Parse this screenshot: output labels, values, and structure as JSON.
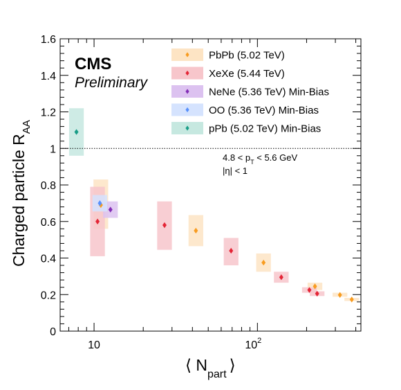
{
  "chart_data": {
    "type": "scatter",
    "experiment_label": "CMS",
    "status_label": "Preliminary",
    "xlabel": "⟨ N",
    "xlabel_sub": "part",
    "xlabel_close": "⟩",
    "ylabel": "Charged particle R",
    "ylabel_sub": "AA",
    "x_scale": "log",
    "xlim": [
      6.2,
      430
    ],
    "ylim": [
      0,
      1.6
    ],
    "x_tick_labels": [
      {
        "value": 10,
        "base": "10",
        "exp": ""
      },
      {
        "value": 100,
        "base": "10",
        "exp": "2"
      }
    ],
    "y_ticks": [
      0,
      0.2,
      0.4,
      0.6,
      0.8,
      1,
      1.2,
      1.4,
      1.6
    ],
    "y_tick_labels": [
      "0",
      "0.2",
      "0.4",
      "0.6",
      "0.8",
      "1",
      "1.2",
      "1.4",
      "1.6"
    ],
    "reference_line": 1.0,
    "annotation_line1": {
      "main": "4.8 < p",
      "sub": "T",
      "rest": " < 5.6 GeV"
    },
    "annotation_line2": {
      "main": "|η| < 1"
    },
    "legend_position": "top-right",
    "series": [
      {
        "name": "PbPb (5.02 TeV)",
        "marker_color": "#f89c20",
        "box_color": "#fde4c4",
        "points": [
          {
            "x": 11.0,
            "y": 0.69,
            "sys_lo": 0.56,
            "sys_hi": 0.83
          },
          {
            "x": 42.0,
            "y": 0.55,
            "sys_lo": 0.465,
            "sys_hi": 0.635
          },
          {
            "x": 109,
            "y": 0.375,
            "sys_lo": 0.325,
            "sys_hi": 0.425
          },
          {
            "x": 225,
            "y": 0.245,
            "sys_lo": 0.225,
            "sys_hi": 0.265
          },
          {
            "x": 320,
            "y": 0.198,
            "sys_lo": 0.188,
            "sys_hi": 0.21
          },
          {
            "x": 378,
            "y": 0.173,
            "sys_lo": 0.165,
            "sys_hi": 0.182
          }
        ]
      },
      {
        "name": "XeXe (5.44 TeV)",
        "marker_color": "#e42536",
        "box_color": "#f7c6cb",
        "points": [
          {
            "x": 10.5,
            "y": 0.6,
            "sys_lo": 0.41,
            "sys_hi": 0.79
          },
          {
            "x": 27.0,
            "y": 0.58,
            "sys_lo": 0.445,
            "sys_hi": 0.71
          },
          {
            "x": 69.0,
            "y": 0.44,
            "sys_lo": 0.36,
            "sys_hi": 0.51
          },
          {
            "x": 140,
            "y": 0.295,
            "sys_lo": 0.265,
            "sys_hi": 0.325
          },
          {
            "x": 208,
            "y": 0.225,
            "sys_lo": 0.21,
            "sys_hi": 0.24
          },
          {
            "x": 232,
            "y": 0.205,
            "sys_lo": 0.192,
            "sys_hi": 0.218
          }
        ]
      },
      {
        "name": "NeNe (5.36 TeV) Min-Bias",
        "marker_color": "#832db6",
        "box_color": "#dcc2f0",
        "points": [
          {
            "x": 12.6,
            "y": 0.665,
            "sys_lo": 0.62,
            "sys_hi": 0.71
          }
        ]
      },
      {
        "name": "OO (5.36 TeV) Min-Bias",
        "marker_color": "#5790fc",
        "box_color": "#d5e3fe",
        "points": [
          {
            "x": 10.85,
            "y": 0.7,
            "sys_lo": 0.655,
            "sys_hi": 0.745
          }
        ]
      },
      {
        "name": "pPb (5.02 TeV) Min-Bias",
        "marker_color": "#199d87",
        "box_color": "#c6e8e0",
        "points": [
          {
            "x": 7.8,
            "y": 1.09,
            "sys_lo": 0.96,
            "sys_hi": 1.22
          }
        ]
      }
    ]
  }
}
